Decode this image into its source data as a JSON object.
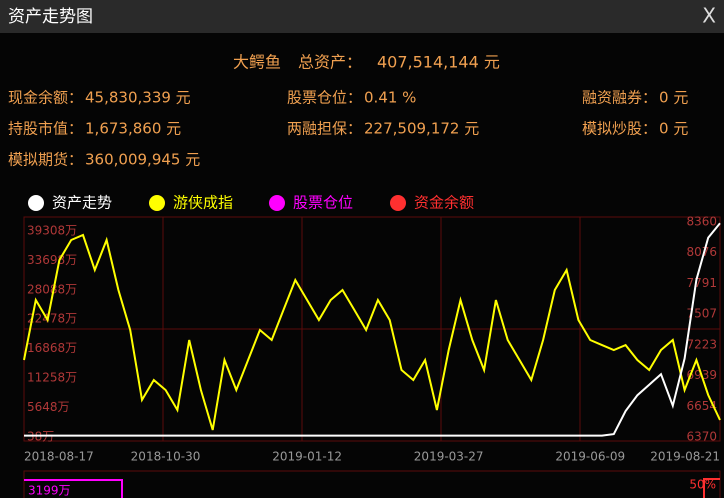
{
  "window": {
    "title": "资产走势图",
    "close": "X"
  },
  "header": {
    "name": "大鳄鱼",
    "total_label": "总资产：",
    "total": "407,514,144 元"
  },
  "stats": [
    [
      {
        "label": "现金余额：",
        "value": "45,830,339 元"
      },
      {
        "label": "股票仓位：",
        "value": "0.41 %"
      },
      {
        "label": "融资融券：",
        "value": "0 元"
      }
    ],
    [
      {
        "label": "持股市值：",
        "value": "1,673,860 元"
      },
      {
        "label": "两融担保：",
        "value": "227,509,172 元"
      },
      {
        "label": "模拟炒股：",
        "value": "0 元"
      }
    ],
    [
      {
        "label": "模拟期货：",
        "value": "360,009,945 元"
      }
    ]
  ],
  "legend": [
    {
      "name": "资产走势",
      "color": "#ffffff"
    },
    {
      "name": "游侠成指",
      "color": "#ffff00"
    },
    {
      "name": "股票仓位",
      "color": "#ff00ff"
    },
    {
      "name": "资金余额",
      "color": "#ff3030"
    }
  ],
  "chart_data": {
    "type": "line",
    "categories": [
      "2018-08-17",
      null,
      null,
      null,
      null,
      null,
      null,
      null,
      null,
      null,
      null,
      null,
      "2018-10-30",
      null,
      null,
      null,
      null,
      null,
      null,
      null,
      null,
      null,
      null,
      null,
      "2019-01-12",
      null,
      null,
      null,
      null,
      null,
      null,
      null,
      null,
      null,
      null,
      null,
      "2019-03-27",
      null,
      null,
      null,
      null,
      null,
      null,
      null,
      null,
      null,
      null,
      null,
      "2019-06-09",
      null,
      null,
      null,
      null,
      null,
      null,
      null,
      null,
      null,
      null,
      "2019-08-21"
    ],
    "series": [
      {
        "name": "资产走势",
        "color": "#ffffff",
        "values": [
          300,
          300,
          300,
          300,
          300,
          300,
          300,
          300,
          300,
          300,
          300,
          300,
          300,
          300,
          300,
          300,
          300,
          300,
          300,
          300,
          300,
          300,
          300,
          300,
          300,
          300,
          300,
          300,
          300,
          300,
          300,
          300,
          300,
          300,
          300,
          300,
          300,
          300,
          300,
          300,
          300,
          300,
          300,
          300,
          300,
          300,
          300,
          300,
          300,
          300,
          600,
          5000,
          8000,
          10000,
          12000,
          6000,
          15000,
          30000,
          38000,
          40751
        ]
      },
      {
        "name": "游侠成指",
        "color": "#ffff00",
        "axis": "y2",
        "values": [
          7083,
          7638,
          7453,
          8008,
          8193,
          8240,
          7916,
          8193,
          7731,
          7360,
          6713,
          6898,
          6805,
          6620,
          7268,
          6805,
          6435,
          7083,
          6805,
          7083,
          7360,
          7268,
          7546,
          7823,
          7638,
          7453,
          7638,
          7731,
          7546,
          7360,
          7638,
          7453,
          6990,
          6898,
          7083,
          6620,
          7175,
          7638,
          7268,
          6990,
          7638,
          7268,
          7083,
          6898,
          7268,
          7731,
          7916,
          7453,
          7268,
          7221,
          7175,
          7221,
          7083,
          6990,
          7175,
          7268,
          6805,
          7083,
          6759,
          6527
        ]
      }
    ],
    "ylim": [
      38,
      41000
    ],
    "yticks": [
      {
        "value": 38,
        "label": "38万"
      },
      {
        "value": 5648,
        "label": "5648万"
      },
      {
        "value": 11258,
        "label": "11258万"
      },
      {
        "value": 16868,
        "label": "16868万"
      },
      {
        "value": 22478,
        "label": "22478万"
      },
      {
        "value": 28088,
        "label": "28088万"
      },
      {
        "value": 33698,
        "label": "33698万"
      },
      {
        "value": 39308,
        "label": "39308万"
      }
    ],
    "y2lim": [
      6370,
      8360
    ],
    "y2ticks": [
      6370,
      6654,
      6939,
      7223,
      7507,
      7791,
      8076,
      8360
    ]
  },
  "bottom_panel": {
    "left_label": "3199万",
    "right_label": "50%"
  }
}
